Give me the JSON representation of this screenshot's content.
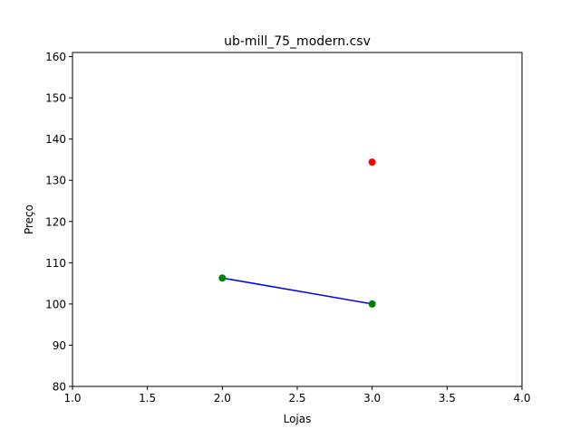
{
  "chart_data": {
    "type": "line",
    "title": "ub-mill_75_modern.csv",
    "xlabel": "Lojas",
    "ylabel": "Preço",
    "xlim": [
      1.0,
      4.0
    ],
    "ylim": [
      80,
      161
    ],
    "xticks": [
      "1.0",
      "1.5",
      "2.0",
      "2.5",
      "3.0",
      "3.5",
      "4.0"
    ],
    "xtick_values": [
      1.0,
      1.5,
      2.0,
      2.5,
      3.0,
      3.5,
      4.0
    ],
    "yticks": [
      "80",
      "90",
      "100",
      "110",
      "120",
      "130",
      "140",
      "150",
      "160"
    ],
    "ytick_values": [
      80,
      90,
      100,
      110,
      120,
      130,
      140,
      150,
      160
    ],
    "grid": false,
    "series": [
      {
        "type": "line",
        "color": "#0000ff",
        "x": [
          2,
          3
        ],
        "y": [
          106.3,
          100.0
        ]
      },
      {
        "type": "scatter",
        "color": "#008000",
        "x": [
          2,
          3
        ],
        "y": [
          106.3,
          100.0
        ]
      },
      {
        "type": "scatter",
        "color": "#ff0000",
        "x": [
          3
        ],
        "y": [
          134.4
        ]
      }
    ]
  }
}
